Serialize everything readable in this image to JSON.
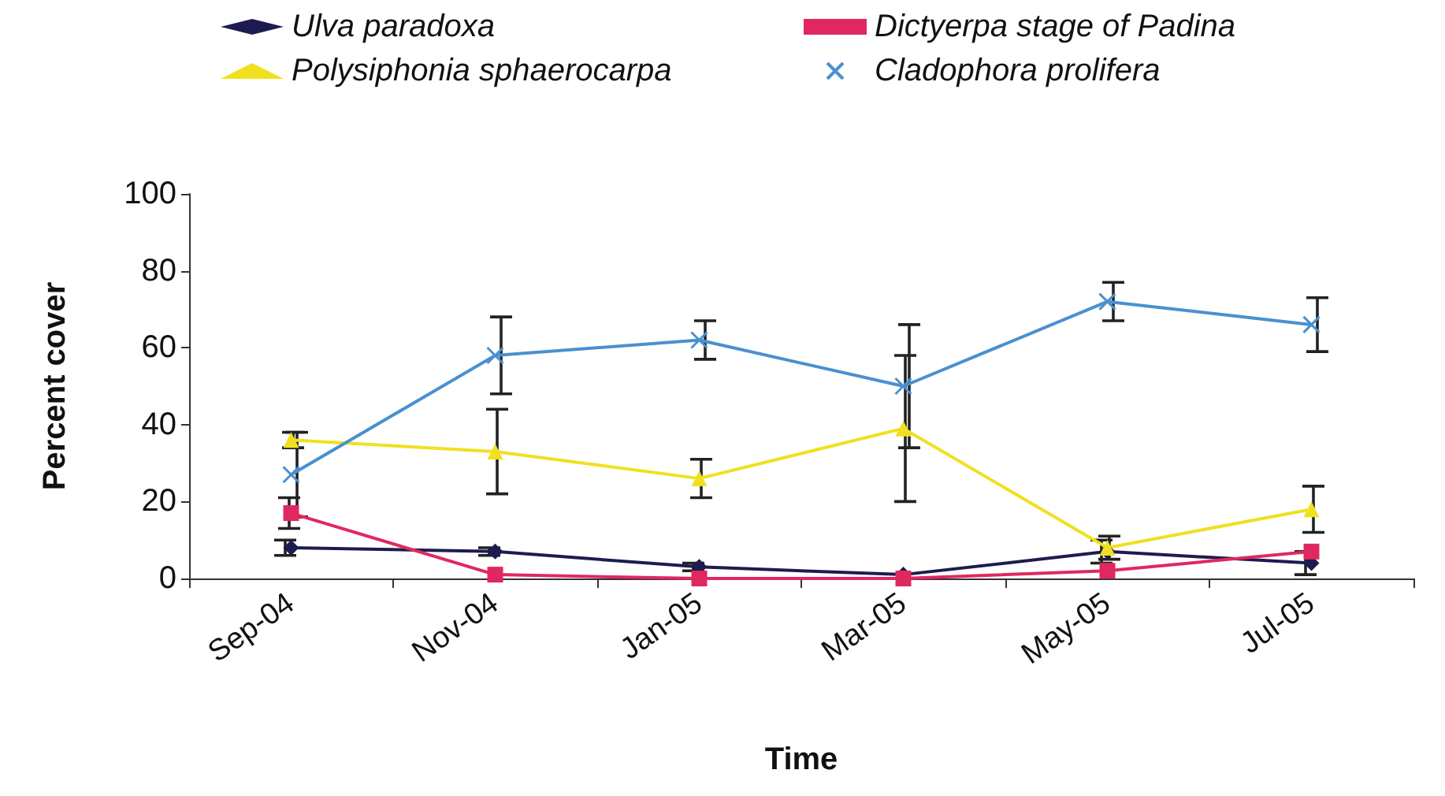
{
  "chart_data": {
    "type": "line",
    "xlabel": "Time",
    "ylabel": "Percent cover",
    "categories": [
      "Sep-04",
      "Nov-04",
      "Jan-05",
      "Mar-05",
      "May-05",
      "Jul-05"
    ],
    "ylim": [
      0,
      100
    ],
    "yticks": [
      0,
      20,
      40,
      60,
      80,
      100
    ],
    "grid": false,
    "legend": "top",
    "series": [
      {
        "name": "Ulva paradoxa",
        "color": "#1c1c50",
        "marker": "diamond",
        "values": [
          8,
          7,
          3,
          1,
          7,
          4
        ],
        "errors": [
          2,
          1,
          1,
          null,
          3,
          3
        ]
      },
      {
        "name": "Dictyerpa stage of Padina",
        "color": "#e02860",
        "marker": "square",
        "values": [
          17,
          1,
          0,
          0,
          2,
          7
        ],
        "errors": [
          4,
          null,
          null,
          null,
          null,
          null
        ]
      },
      {
        "name": "Polysiphonia sphaerocarpa",
        "color": "#f0e020",
        "marker": "triangle",
        "values": [
          36,
          33,
          26,
          39,
          8,
          18
        ],
        "errors": [
          2,
          11,
          5,
          19,
          3,
          6
        ]
      },
      {
        "name": "Cladophora prolifera",
        "color": "#4a90d0",
        "marker": "cross",
        "values": [
          27,
          58,
          62,
          50,
          72,
          66
        ],
        "errors": [
          11,
          10,
          5,
          16,
          5,
          7
        ]
      }
    ]
  }
}
